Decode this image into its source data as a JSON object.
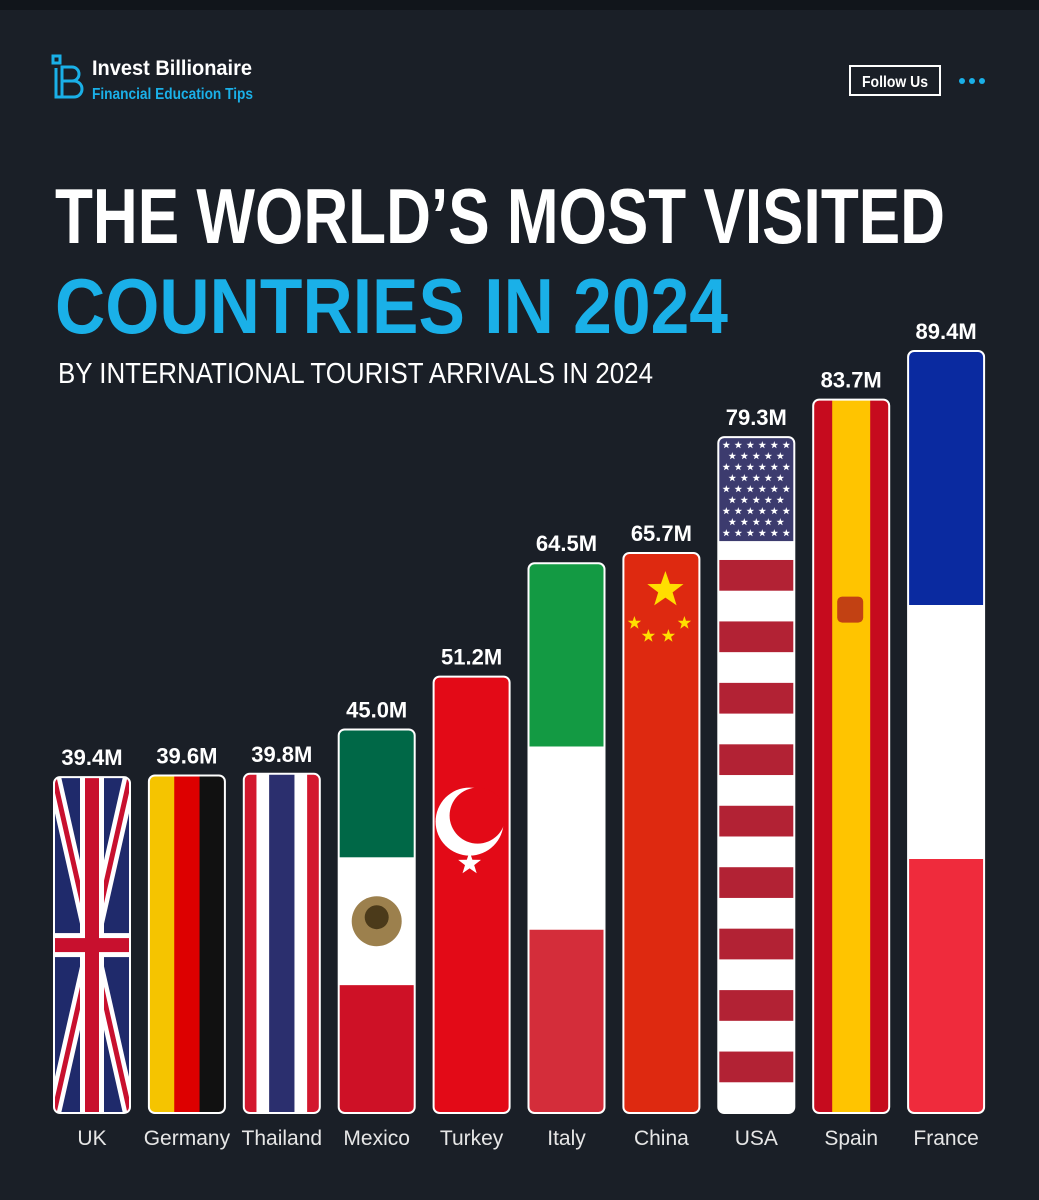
{
  "brand": {
    "name": "Invest Billionaire",
    "tagline": "Financial Education Tips"
  },
  "follow_button": "Follow Us",
  "chart_data": {
    "type": "bar",
    "title": [
      "THE WORLD’S MOST VISITED",
      "COUNTRIES IN 2024"
    ],
    "subtitle": "BY INTERNATIONAL TOURIST ARRIVALS IN 2024",
    "categories": [
      "UK",
      "Germany",
      "Thailand",
      "Mexico",
      "Turkey",
      "Italy",
      "China",
      "USA",
      "Spain",
      "France"
    ],
    "values": [
      39.4,
      39.6,
      39.8,
      45.0,
      51.2,
      64.5,
      65.7,
      79.3,
      83.7,
      89.4
    ],
    "value_labels": [
      "39.4M",
      "39.6M",
      "39.8M",
      "45.0M",
      "51.2M",
      "64.5M",
      "65.7M",
      "79.3M",
      "83.7M",
      "89.4M"
    ]
  }
}
